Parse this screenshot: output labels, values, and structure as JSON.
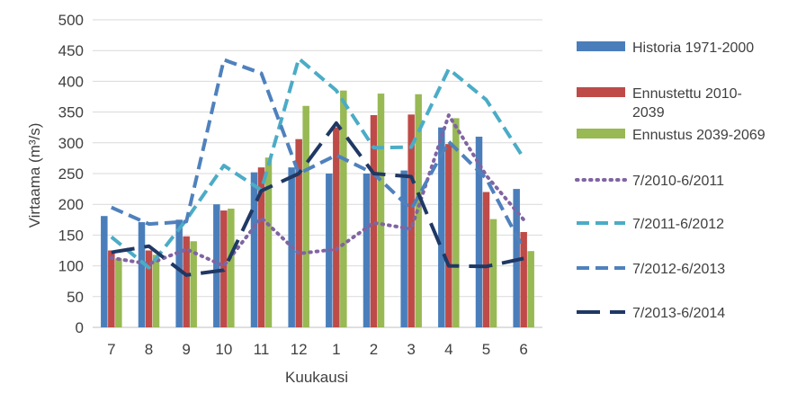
{
  "chart_data": {
    "type": "bar",
    "title": "",
    "xlabel": "Kuukausi",
    "ylabel": "Virtaama (m³/s)",
    "ylim": [
      0,
      500
    ],
    "yticks": [
      0,
      50,
      100,
      150,
      200,
      250,
      300,
      350,
      400,
      450,
      500
    ],
    "grid": true,
    "legend": "right",
    "categories": [
      "7",
      "8",
      "9",
      "10",
      "11",
      "12",
      "1",
      "2",
      "3",
      "4",
      "5",
      "6"
    ],
    "series": [
      {
        "name": "Historia 1971-2000",
        "type": "bar",
        "color": "#4a7ebb",
        "values": [
          181,
          171,
          175,
          200,
          252,
          260,
          250,
          250,
          255,
          325,
          310,
          225
        ]
      },
      {
        "name": "Ennustettu 2010-2039",
        "type": "bar",
        "color": "#be4b48",
        "values": [
          125,
          125,
          148,
          190,
          260,
          306,
          325,
          345,
          346,
          298,
          220,
          155
        ]
      },
      {
        "name": "Ennustus 2039-2069",
        "type": "bar",
        "color": "#98b954",
        "values": [
          112,
          118,
          140,
          193,
          276,
          360,
          385,
          380,
          379,
          340,
          176,
          124
        ]
      },
      {
        "name": "7/2010-6/2011",
        "type": "line",
        "dash": "dot",
        "color": "#8064a2",
        "values": [
          113,
          103,
          127,
          100,
          178,
          120,
          127,
          170,
          160,
          345,
          247,
          175
        ]
      },
      {
        "name": "7/2011-6/2012",
        "type": "line",
        "dash": "dash",
        "color": "#4bacc6",
        "values": [
          147,
          97,
          175,
          263,
          223,
          437,
          385,
          292,
          293,
          420,
          370,
          275
        ]
      },
      {
        "name": "7/2012-6/2013",
        "type": "line",
        "dash": "dash",
        "color": "#4f81bd",
        "values": [
          195,
          168,
          172,
          435,
          413,
          250,
          280,
          250,
          192,
          302,
          242,
          127
        ]
      },
      {
        "name": "7/2013-6/2014",
        "type": "line",
        "dash": "longdash",
        "color": "#1f3864",
        "values": [
          122,
          132,
          85,
          93,
          222,
          250,
          332,
          250,
          245,
          100,
          99,
          112
        ]
      }
    ]
  }
}
